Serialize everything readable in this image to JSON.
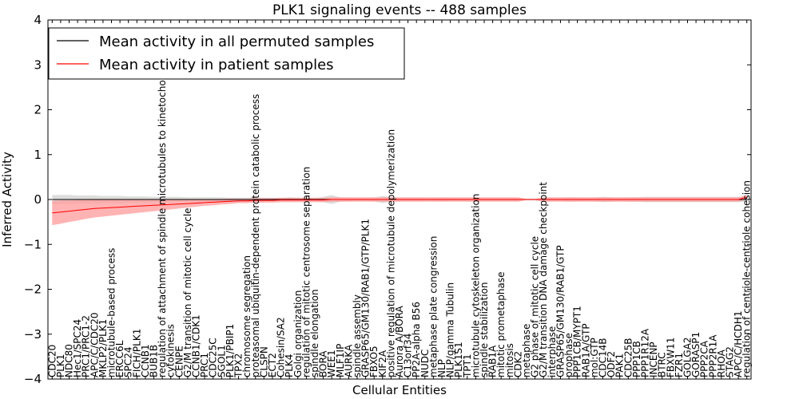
{
  "chart_data": {
    "type": "line",
    "title": "PLK1 signaling events -- 488 samples",
    "xlabel": "Cellular Entities",
    "ylabel": "Inferred Activity",
    "ylim": [
      -4,
      4
    ],
    "yticks": [
      -4,
      -3,
      -2,
      -1,
      0,
      1,
      2,
      3,
      4
    ],
    "legend_position": "top-left",
    "categories": [
      "CDC20",
      "PLK1",
      "NDC80",
      "Hec1/SPC24",
      "PRC1/PRC1-2",
      "APC/C/CDC20",
      "MKLP2/PLK1",
      "microtubule-based process",
      "ERCC6L",
      "SPC24",
      "FICH/PLK1",
      "CCNB1",
      "BUB1B",
      "regulation of attachment of spindle microtubules to kinetochore",
      "cytokinesis",
      "CENPE",
      "G2/M transition of mitotic cell cycle",
      "CCNB1/CDK1",
      "PRC1",
      "CDC25C",
      "SGOL1",
      "PLK1/PBIP1",
      "TPX2",
      "chromosome segregation",
      "proteasomal ubiquitin-dependent protein catabolic process",
      "CLSPN",
      "ECT2",
      "Cohesin/SA2",
      "PLK4",
      "Golgi organization",
      "regulation of mitotic centrosome separation",
      "spindle elongation",
      "BORA",
      "WEE1",
      "MLF1IP",
      "AURKA",
      "spindle assembly",
      "GRASP65/GM130/RAB1/GTP/PLK1",
      "FBXO5",
      "KIF2A",
      "positive regulation of microtubule depolymerization",
      "Aurora A/BORA",
      "C13orf34",
      "PP2A-alpha B56",
      "NUDC",
      "metaphase plate congression",
      "NLP",
      "NLP/gamma Tubulin",
      "PLK1S1",
      "TPT1",
      "microtubule cytoskeleton organization",
      "spindle stabilization",
      "RAB1A",
      "mitotic prometaphase",
      "mitosis",
      "CDK2",
      "metaphase",
      "G2 phase of mitotic cell cycle",
      "G2/M transition DNA damage checkpoint",
      "interphase",
      "GRASP65/GM130/RAB1/GTP",
      "prophase",
      "PPP1CB/MYPT1",
      "RAB1A/GTP",
      "mol:GTP",
      "CDC14B",
      "ODF2",
      "PAK1",
      "CDC25B",
      "PPP1CB",
      "PPP1R12A",
      "INCENP",
      "BTRC",
      "FBXW11",
      "FZR1",
      "GOLGA2",
      "GORASP1",
      "PPP2CA",
      "PPP2R1A",
      "RHOA",
      "STAG2",
      "APC/C/HCDH1",
      "regulation of centriole-centriole cohesion"
    ],
    "series": [
      {
        "name": "Mean activity in all permuted samples",
        "color": "#000000",
        "band_color": "#d9d9d9",
        "values": [
          0,
          0,
          0,
          0,
          0,
          0,
          0,
          0,
          0,
          0,
          0,
          0,
          0,
          0,
          0,
          0,
          0,
          0,
          0,
          0,
          0,
          0,
          0,
          0,
          0,
          0,
          0,
          0,
          0,
          0,
          0,
          0,
          0,
          0,
          0,
          0,
          0,
          0,
          0,
          0,
          0,
          0,
          0,
          0,
          0,
          0,
          0,
          0,
          0,
          0,
          0,
          0,
          0,
          0,
          0,
          0,
          0,
          0,
          0,
          0,
          0,
          0,
          0,
          0,
          0,
          0,
          0,
          0,
          0,
          0,
          0,
          0,
          0,
          0,
          0,
          0,
          0,
          0,
          0,
          0,
          0,
          0,
          0
        ],
        "band": [
          0.1,
          0.1,
          0.1,
          0.09,
          0.09,
          0.09,
          0.08,
          0.08,
          0.08,
          0.07,
          0.07,
          0.07,
          0.06,
          0.06,
          0.06,
          0.06,
          0.05,
          0.05,
          0.05,
          0.05,
          0.05,
          0.04,
          0.04,
          0.04,
          0.04,
          0.04,
          0.04,
          0.03,
          0.05,
          0.04,
          0.04,
          0.03,
          0.06,
          0.1,
          0.05,
          0.04,
          0.03,
          0.03,
          0.04,
          0.08,
          0.05,
          0.04,
          0.03,
          0.04,
          0.03,
          0.03,
          0.04,
          0.03,
          0.03,
          0.03,
          0.03,
          0.03,
          0.03,
          0.03,
          0.03,
          0.03,
          0.02,
          0.02,
          0.03,
          0.03,
          0.03,
          0.05,
          0.04,
          0.03,
          0.04,
          0.06,
          0.05,
          0.04,
          0.05,
          0.05,
          0.06,
          0.06,
          0.06,
          0.06,
          0.06,
          0.06,
          0.06,
          0.06,
          0.06,
          0.06,
          0.06,
          0.06,
          0.05
        ]
      },
      {
        "name": "Mean activity in patient samples",
        "color": "#ff0000",
        "band_color": "#ff9999",
        "values": [
          -0.3,
          -0.28,
          -0.26,
          -0.24,
          -0.22,
          -0.2,
          -0.19,
          -0.18,
          -0.17,
          -0.16,
          -0.15,
          -0.14,
          -0.13,
          -0.12,
          -0.11,
          -0.1,
          -0.09,
          -0.08,
          -0.07,
          -0.06,
          -0.05,
          -0.04,
          -0.03,
          -0.03,
          -0.02,
          -0.02,
          -0.02,
          -0.01,
          -0.01,
          -0.01,
          -0.01,
          -0.01,
          -0.01,
          0,
          0,
          0,
          0,
          0,
          0,
          0,
          0,
          0,
          0,
          0,
          0,
          0,
          0,
          0,
          0,
          0,
          0,
          0,
          0,
          0,
          0,
          0,
          0,
          0,
          0,
          0,
          0,
          0,
          0,
          0,
          0,
          0,
          0,
          0,
          0,
          0,
          0,
          0,
          0,
          0,
          0,
          0,
          0,
          0,
          0,
          0,
          0,
          0,
          0.05
        ],
        "band": [
          0.27,
          0.26,
          0.24,
          0.23,
          0.21,
          0.2,
          0.19,
          0.18,
          0.17,
          0.16,
          0.15,
          0.14,
          0.13,
          0.12,
          0.11,
          0.1,
          0.09,
          0.08,
          0.07,
          0.07,
          0.06,
          0.06,
          0.05,
          0.05,
          0.05,
          0.05,
          0.05,
          0.05,
          0.05,
          0.05,
          0.05,
          0.05,
          0.05,
          0.05,
          0.05,
          0.05,
          0.05,
          0.05,
          0.05,
          0.05,
          0.05,
          0.05,
          0.05,
          0.05,
          0.05,
          0.05,
          0.05,
          0.05,
          0.05,
          0.05,
          0.05,
          0.05,
          0.05,
          0.05,
          0.05,
          0.05,
          0.01,
          0.01,
          0.05,
          0.05,
          0.05,
          0.05,
          0.05,
          0.05,
          0.05,
          0.05,
          0.05,
          0.05,
          0.05,
          0.05,
          0.05,
          0.05,
          0.05,
          0.05,
          0.05,
          0.05,
          0.05,
          0.05,
          0.05,
          0.05,
          0.05,
          0.05,
          0.05
        ]
      }
    ]
  }
}
